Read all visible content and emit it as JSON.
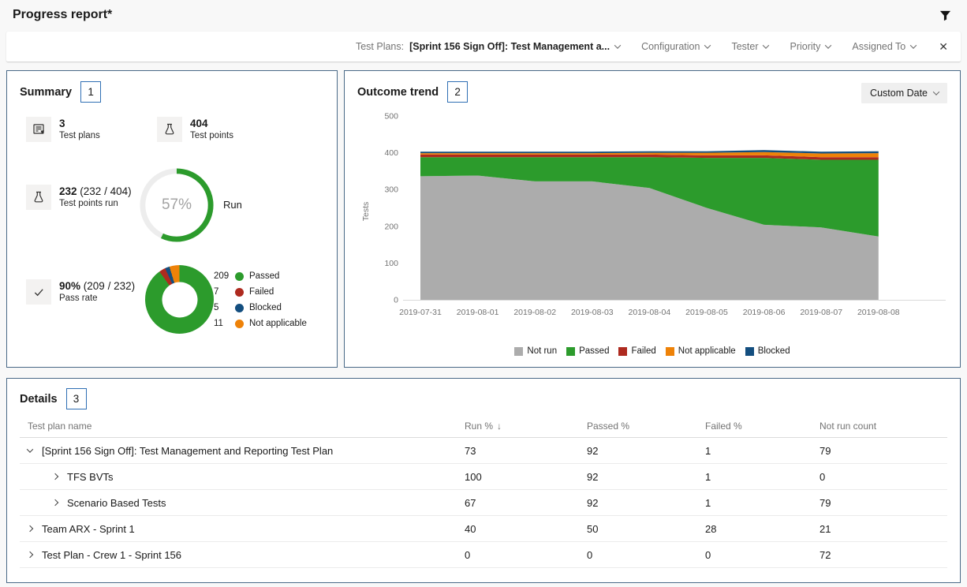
{
  "header": {
    "title": "Progress report*",
    "filter_icon": "funnel-icon"
  },
  "filter_bar": {
    "test_plans_label": "Test Plans:",
    "test_plans_value": "[Sprint 156 Sign Off]: Test Management a...",
    "dropdowns": [
      "Configuration",
      "Tester",
      "Priority",
      "Assigned To"
    ],
    "close_icon": "✕"
  },
  "summary": {
    "title": "Summary",
    "badge": "1",
    "stats": [
      {
        "icon": "test-plan-icon",
        "value": "3",
        "suffix": "",
        "label": "Test plans"
      },
      {
        "icon": "test-beaker-icon",
        "value": "404",
        "suffix": "",
        "label": "Test points"
      },
      {
        "icon": "test-beaker-icon",
        "value": "232",
        "suffix": "(232 / 404)",
        "label": "Test points run"
      },
      {
        "icon": "check-icon",
        "value": "90%",
        "suffix": "(209 / 232)",
        "label": "Pass rate"
      }
    ],
    "run_ring": {
      "percent": 57,
      "display": "57%",
      "label": "Run",
      "color": "#2c9b2c",
      "track": "#ededed"
    },
    "outcome_donut": {
      "slices": [
        {
          "label": "Passed",
          "value": 209,
          "color": "#2c9b2c"
        },
        {
          "label": "Failed",
          "value": 7,
          "color": "#ae2a1f"
        },
        {
          "label": "Blocked",
          "value": 5,
          "color": "#134e7f"
        },
        {
          "label": "Not applicable",
          "value": 11,
          "color": "#ee8208"
        }
      ],
      "legend_order": [
        "Passed",
        "Failed",
        "Blocked",
        "Not applicable"
      ]
    }
  },
  "outcome_trend": {
    "title": "Outcome trend",
    "badge": "2",
    "date_button": "Custom Date"
  },
  "chart_data": {
    "type": "area",
    "stacked": true,
    "title": "Outcome trend",
    "xlabel": "",
    "ylabel": "Tests",
    "ylim": [
      0,
      500
    ],
    "yticks": [
      0,
      100,
      200,
      300,
      400,
      500
    ],
    "grid": false,
    "legend_position": "bottom",
    "x": [
      "2019-07-31",
      "2019-08-01",
      "2019-08-02",
      "2019-08-03",
      "2019-08-04",
      "2019-08-05",
      "2019-08-06",
      "2019-08-07",
      "2019-08-08"
    ],
    "series": [
      {
        "name": "Not run",
        "color": "#acacac",
        "values": [
          336,
          338,
          322,
          322,
          304,
          250,
          204,
          197,
          172
        ]
      },
      {
        "name": "Passed",
        "color": "#2c9b2c",
        "values": [
          52,
          50,
          66,
          66,
          84,
          136,
          182,
          184,
          209
        ]
      },
      {
        "name": "Failed",
        "color": "#ae2a1f",
        "values": [
          7,
          7,
          7,
          7,
          7,
          7,
          7,
          7,
          7
        ]
      },
      {
        "name": "Not applicable",
        "color": "#ee8208",
        "values": [
          4,
          4,
          4,
          4,
          5,
          7,
          9,
          10,
          11
        ]
      },
      {
        "name": "Blocked",
        "color": "#134e7f",
        "values": [
          4,
          4,
          4,
          4,
          4,
          4,
          5,
          5,
          5
        ]
      }
    ]
  },
  "details": {
    "title": "Details",
    "badge": "3",
    "columns": [
      {
        "label": "Test plan name",
        "sort": null
      },
      {
        "label": "Run %",
        "sort": "desc"
      },
      {
        "label": "Passed %",
        "sort": null
      },
      {
        "label": "Failed %",
        "sort": null
      },
      {
        "label": "Not run count",
        "sort": null
      }
    ],
    "sort_arrow": "↓",
    "rows": [
      {
        "name": "[Sprint 156 Sign Off]: Test Management and Reporting Test Plan",
        "level": 0,
        "expanded": true,
        "run": "73",
        "passed": "92",
        "failed": "1",
        "not_run": "79"
      },
      {
        "name": "TFS BVTs",
        "level": 1,
        "expanded": false,
        "run": "100",
        "passed": "92",
        "failed": "1",
        "not_run": "0"
      },
      {
        "name": "Scenario Based Tests",
        "level": 1,
        "expanded": false,
        "run": "67",
        "passed": "92",
        "failed": "1",
        "not_run": "79"
      },
      {
        "name": "Team ARX - Sprint 1",
        "level": 0,
        "expanded": false,
        "run": "40",
        "passed": "50",
        "failed": "28",
        "not_run": "21"
      },
      {
        "name": "Test Plan - Crew 1 - Sprint 156",
        "level": 0,
        "expanded": false,
        "run": "0",
        "passed": "0",
        "failed": "0",
        "not_run": "72"
      }
    ]
  }
}
